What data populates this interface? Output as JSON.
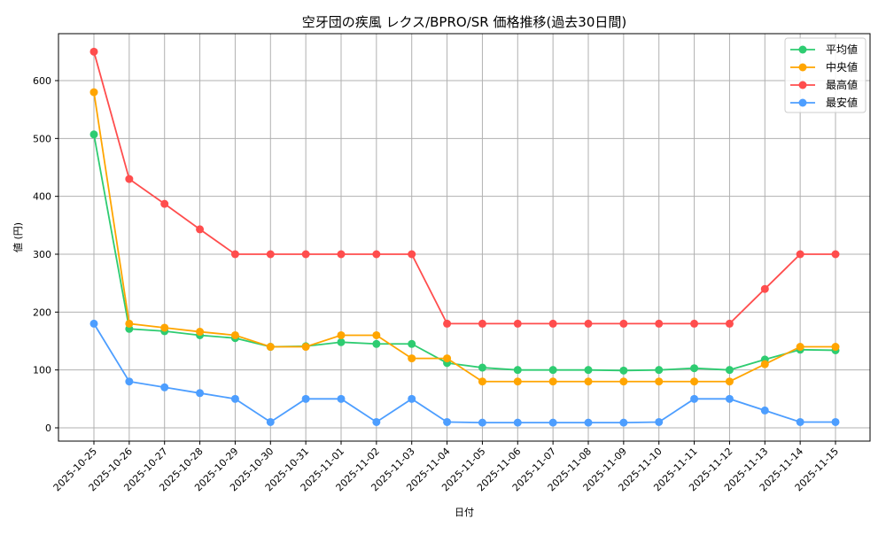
{
  "chart_data": {
    "type": "line",
    "title": "空牙団の疾風 レクス/BPRO/SR 価格推移(過去30日間)",
    "xlabel": "日付",
    "ylabel": "値 (円)",
    "ylim": [
      -25,
      685
    ],
    "yticks": [
      0,
      100,
      200,
      300,
      400,
      500,
      600
    ],
    "grid": true,
    "legend_position": "upper right",
    "x": [
      "2025-10-25",
      "2025-10-26",
      "2025-10-27",
      "2025-10-28",
      "2025-10-29",
      "2025-10-30",
      "2025-10-31",
      "2025-11-01",
      "2025-11-02",
      "2025-11-03",
      "2025-11-04",
      "2025-11-05",
      "2025-11-06",
      "2025-11-07",
      "2025-11-08",
      "2025-11-09",
      "2025-11-10",
      "2025-11-11",
      "2025-11-12",
      "2025-11-13",
      "2025-11-14",
      "2025-11-15"
    ],
    "series": [
      {
        "name": "平均値",
        "color": "#2ecc71",
        "values": [
          507,
          171,
          167,
          160,
          155,
          140,
          141,
          148,
          145,
          145,
          112,
          104,
          100,
          100,
          100,
          99,
          100,
          103,
          100,
          118,
          135,
          134
        ]
      },
      {
        "name": "中央値",
        "color": "#ffa500",
        "values": [
          580,
          180,
          173,
          166,
          160,
          140,
          140,
          160,
          160,
          120,
          120,
          80,
          80,
          80,
          80,
          80,
          80,
          80,
          80,
          110,
          140,
          140
        ]
      },
      {
        "name": "最高値",
        "color": "#ff4d4d",
        "values": [
          650,
          430,
          387,
          343,
          300,
          300,
          300,
          300,
          300,
          300,
          180,
          180,
          180,
          180,
          180,
          180,
          180,
          180,
          180,
          240,
          300,
          300
        ]
      },
      {
        "name": "最安値",
        "color": "#4d9eff",
        "values": [
          180,
          80,
          70,
          60,
          50,
          10,
          50,
          50,
          10,
          50,
          10,
          9,
          9,
          9,
          9,
          9,
          10,
          50,
          50,
          30,
          10,
          10
        ]
      }
    ]
  }
}
